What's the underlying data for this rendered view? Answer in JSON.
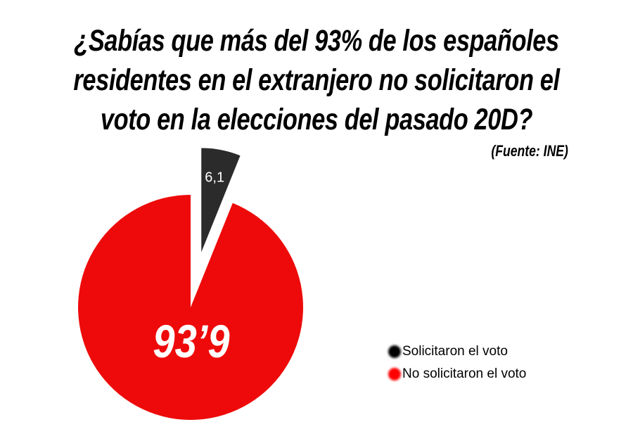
{
  "chart_data": {
    "type": "pie",
    "title": [
      "¿Sabías que más del 93% de los españoles",
      "residentes en el extranjero no solicitaron el",
      "voto en la elecciones del pasado 20D?"
    ],
    "source": "(Fuente: INE)",
    "slices": [
      {
        "name": "Solicitaron el voto",
        "value": 6.1,
        "label": "6,1",
        "color": "#2b2b2b",
        "exploded": true
      },
      {
        "name": "No solicitaron el voto",
        "value": 93.9,
        "label": "93’9",
        "color": "#ee0a0a",
        "exploded": false
      }
    ],
    "legend": {
      "placement": "bottom-right",
      "entries": [
        "Solicitaron el voto",
        "No solicitaron el voto"
      ],
      "colors": [
        "#000000",
        "#ff0000"
      ]
    }
  }
}
